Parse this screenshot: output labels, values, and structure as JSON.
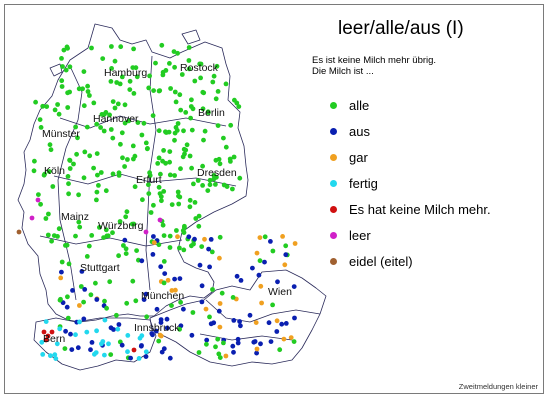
{
  "title": "leer/alle/aus (I)",
  "question": {
    "line1": "Es ist keine Milch mehr übrig.",
    "line2": "Die Milch ist ..."
  },
  "legend": [
    {
      "label": "alle",
      "color": "#22cc22"
    },
    {
      "label": "aus",
      "color": "#0a1fb0"
    },
    {
      "label": "gar",
      "color": "#f0a020"
    },
    {
      "label": "fertig",
      "color": "#22d8ee"
    },
    {
      "label": "Es hat keine Milch mehr.",
      "color": "#d01010"
    },
    {
      "label": "leer",
      "color": "#d020c8"
    },
    {
      "label": "eidel (eitel)",
      "color": "#a06030"
    }
  ],
  "cities": {
    "hamburg": "Hamburg",
    "rostock": "Rostock",
    "hannover": "Hannover",
    "berlin": "Berlin",
    "muenster": "Münster",
    "koeln": "Köln",
    "erfurt": "Erfurt",
    "dresden": "Dresden",
    "mainz": "Mainz",
    "wuerzburg": "Würzburg",
    "stuttgart": "Stuttgart",
    "muenchen": "München",
    "wien": "Wien",
    "innsbruck": "Innsbruck",
    "bern": "Bern"
  },
  "footnote": "Zweitmeldungen kleiner"
}
